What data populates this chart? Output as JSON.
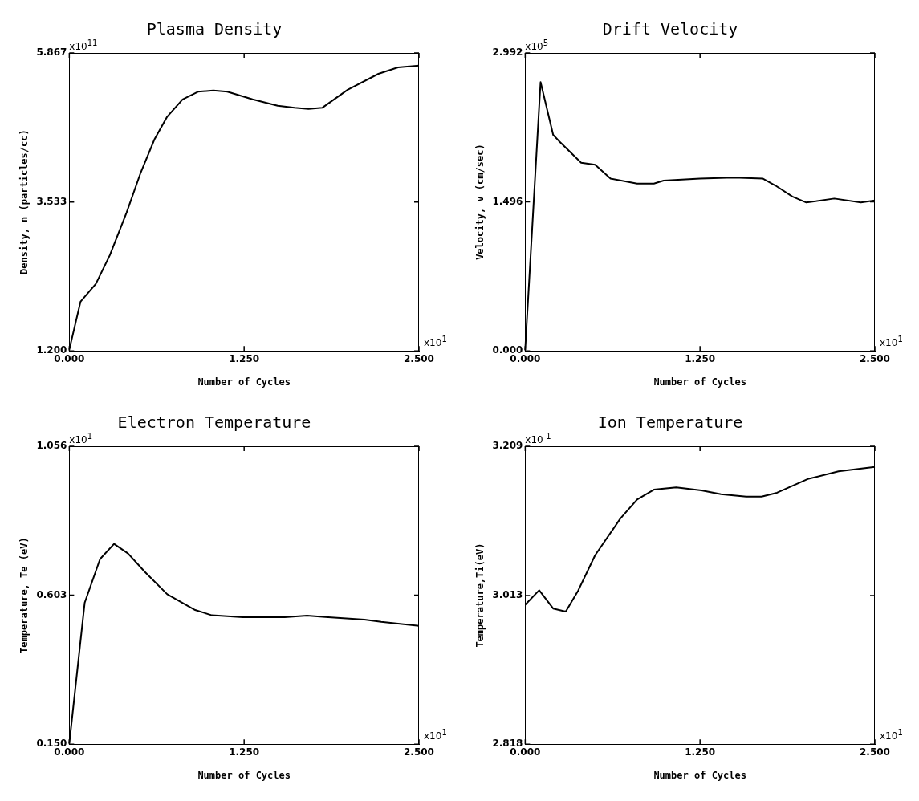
{
  "chart_data": [
    {
      "type": "line",
      "title": "Plasma Density",
      "xlabel": "Number of Cycles",
      "ylabel": "Density, n (particles/cc)",
      "color": "#000000",
      "marker": "none",
      "grid": false,
      "x": [
        0,
        0.08,
        0.19,
        0.29,
        0.41,
        0.51,
        0.61,
        0.7,
        0.81,
        0.92,
        1.03,
        1.13,
        1.31,
        1.49,
        1.61,
        1.71,
        1.81,
        1.99,
        2.21,
        2.35,
        2.5
      ],
      "values": [
        1.22,
        1.97,
        2.25,
        2.7,
        3.37,
        3.99,
        4.52,
        4.87,
        5.14,
        5.26,
        5.28,
        5.26,
        5.14,
        5.04,
        5.01,
        4.99,
        5.01,
        5.29,
        5.54,
        5.64,
        5.67
      ],
      "xlim": [
        0,
        2.5
      ],
      "xticks": [
        {
          "value": 0,
          "label": "0.000"
        },
        {
          "value": 1.25,
          "label": "1.250"
        },
        {
          "value": 2.5,
          "label": "2.500"
        }
      ],
      "ylim": [
        1.2,
        5.867
      ],
      "yticks": [
        {
          "value": 1.2,
          "label": "1.200"
        },
        3.533,
        5.867
      ],
      "annotations": [
        "x10$^{11}$",
        "x10$^{1}$"
      ]
    },
    {
      "type": "line",
      "title": "Drift Velocity",
      "xlabel": "Number of Cycles",
      "ylabel": "Velocity, v (cm/sec)",
      "color": "#000000",
      "marker": "none",
      "grid": false,
      "x": [
        0,
        0.11,
        0.2,
        0.24,
        0.4,
        0.5,
        0.61,
        0.8,
        0.92,
        0.99,
        1.25,
        1.49,
        1.7,
        1.79,
        1.91,
        2.01,
        2.21,
        2.4,
        2.5
      ],
      "values": [
        0.01,
        2.7,
        2.17,
        2.11,
        1.89,
        1.87,
        1.73,
        1.68,
        1.68,
        1.71,
        1.73,
        1.74,
        1.73,
        1.66,
        1.55,
        1.49,
        1.53,
        1.49,
        1.51
      ],
      "xlim": [
        0,
        2.5
      ],
      "xticks": [
        {
          "value": 0,
          "label": "0.000"
        },
        {
          "value": 1.25,
          "label": "1.250"
        },
        {
          "value": 2.5,
          "label": "2.500"
        }
      ],
      "ylim": [
        0,
        2.992
      ],
      "yticks": [
        {
          "value": 0,
          "label": "0.000"
        },
        1.496,
        2.992
      ],
      "annotations": [
        "x10$^{5}$",
        "x10$^{1}$"
      ]
    },
    {
      "type": "line",
      "title": "Electron Temperature",
      "xlabel": "Number of Cycles",
      "ylabel": "Temperature, Te (eV)",
      "color": "#000000",
      "marker": "none",
      "grid": false,
      "x": [
        0,
        0.11,
        0.22,
        0.32,
        0.42,
        0.54,
        0.7,
        0.9,
        1.02,
        1.24,
        1.54,
        1.7,
        1.83,
        2.11,
        2.23,
        2.5
      ],
      "values": [
        0.152,
        0.58,
        0.713,
        0.759,
        0.73,
        0.674,
        0.606,
        0.558,
        0.542,
        0.536,
        0.536,
        0.541,
        0.537,
        0.529,
        0.522,
        0.51
      ],
      "xlim": [
        0,
        2.5
      ],
      "xticks": [
        {
          "value": 0,
          "label": "0.000"
        },
        {
          "value": 1.25,
          "label": "1.250"
        },
        {
          "value": 2.5,
          "label": "2.500"
        }
      ],
      "ylim": [
        0.15,
        1.056
      ],
      "yticks": [
        {
          "value": 0.15,
          "label": "0.150"
        },
        0.603,
        1.056
      ],
      "annotations": [
        "x10$^{1}$",
        "x10$^{1}$"
      ]
    },
    {
      "type": "line",
      "title": "Ion Temperature",
      "xlabel": "Number of Cycles",
      "ylabel": "Temperature,Ti(eV)",
      "color": "#000000",
      "marker": "none",
      "grid": false,
      "x": [
        0,
        0.1,
        0.2,
        0.29,
        0.38,
        0.5,
        0.68,
        0.8,
        0.92,
        1.08,
        1.26,
        1.4,
        1.58,
        1.69,
        1.8,
        2.02,
        2.24,
        2.5
      ],
      "values": [
        3.001,
        3.02,
        2.996,
        2.992,
        3.02,
        3.066,
        3.114,
        3.139,
        3.152,
        3.155,
        3.151,
        3.146,
        3.143,
        3.143,
        3.148,
        3.166,
        3.176,
        3.182
      ],
      "xlim": [
        0,
        2.5
      ],
      "xticks": [
        {
          "value": 0,
          "label": "0.000"
        },
        {
          "value": 1.25,
          "label": "1.250"
        },
        {
          "value": 2.5,
          "label": "2.500"
        }
      ],
      "ylim": [
        2.818,
        3.209
      ],
      "yticks": [
        2.818,
        3.013,
        3.209
      ],
      "annotations": [
        "x10$^{-1}$",
        "x10$^{1}$"
      ]
    }
  ]
}
